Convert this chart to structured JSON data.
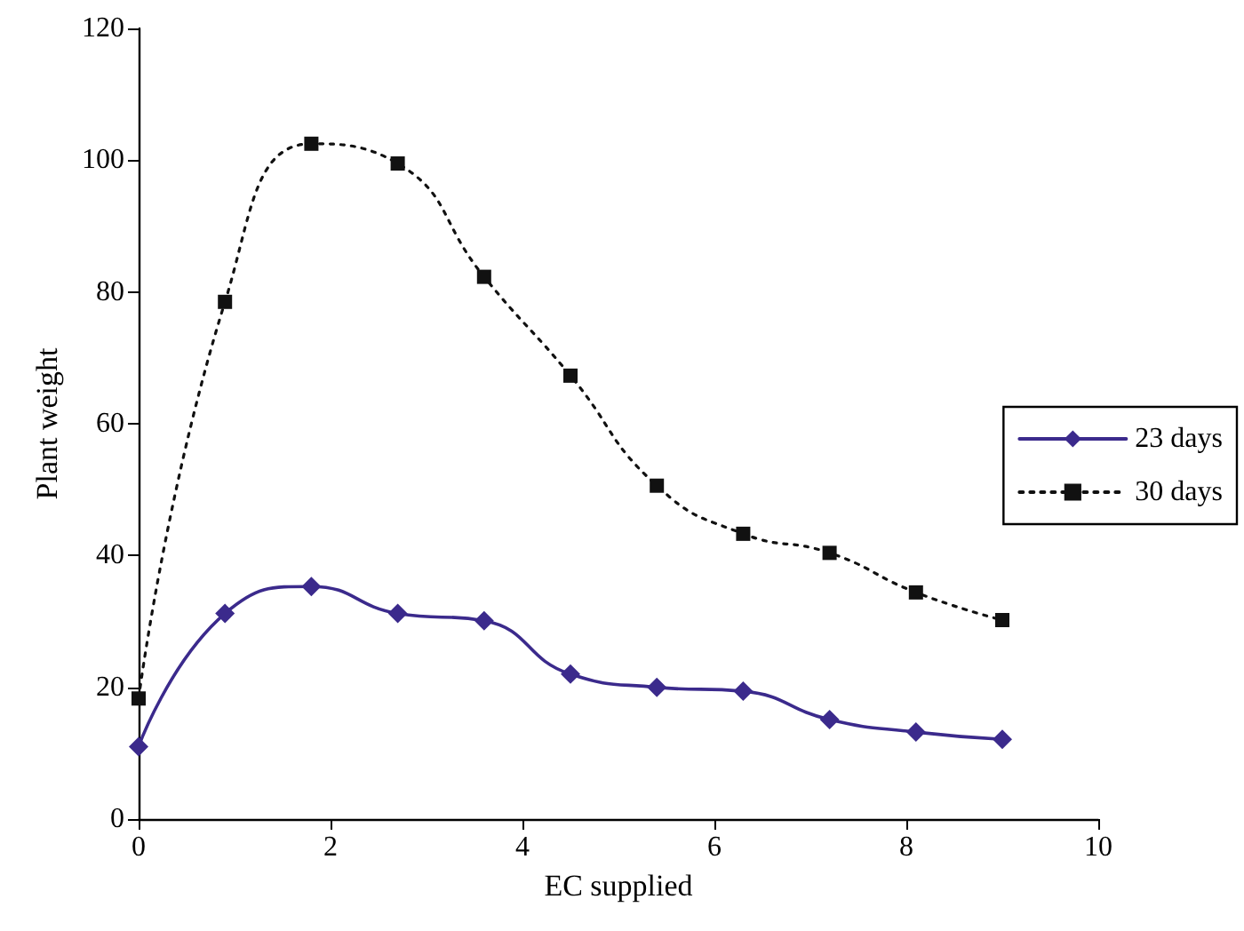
{
  "chart_data": {
    "type": "line",
    "xlabel": "EC supplied",
    "ylabel": "Plant weight",
    "xlim": [
      0,
      10
    ],
    "xticks": [
      0,
      2,
      4,
      6,
      8,
      10
    ],
    "ylim": [
      0,
      120
    ],
    "yticks": [
      0,
      20,
      40,
      60,
      80,
      100,
      120
    ],
    "x": [
      0,
      0.9,
      1.8,
      2.7,
      3.6,
      4.5,
      5.4,
      6.3,
      7.2,
      8.1,
      9
    ],
    "series": [
      {
        "name": "23 days",
        "color": "#3b2a8c",
        "marker": "diamond",
        "line_style": "solid",
        "values": [
          11,
          31.2,
          35.3,
          31.2,
          30.1,
          22,
          20,
          19.4,
          15.1,
          13.2,
          12.1
        ]
      },
      {
        "name": "30 days",
        "color": "#111111",
        "marker": "square",
        "line_style": "dotted",
        "values": [
          18.3,
          78.5,
          102.5,
          99.5,
          82.3,
          67.3,
          50.6,
          43.3,
          40.4,
          34.4,
          30.2
        ]
      }
    ],
    "grid": false,
    "legend": "right"
  }
}
